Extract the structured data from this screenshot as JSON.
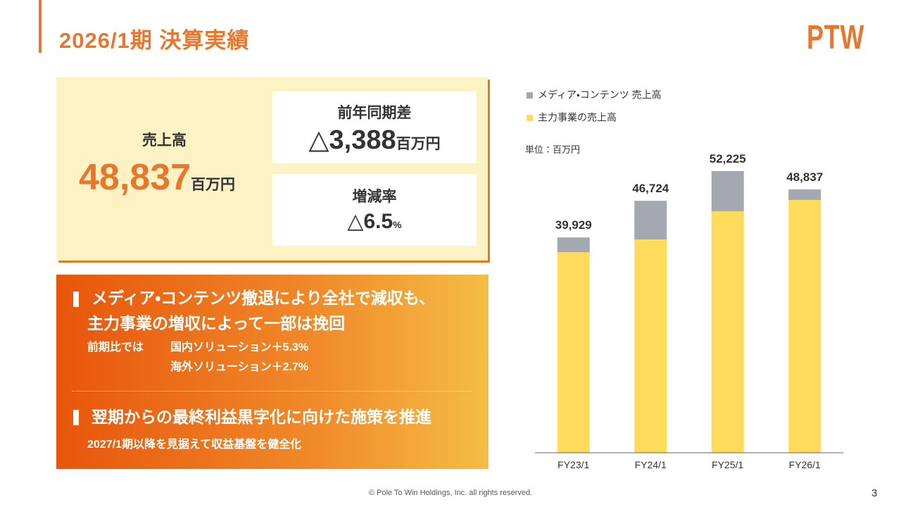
{
  "header": {
    "title": "2026/1期 決算実績",
    "logo": "PTW"
  },
  "summary": {
    "sales_label": "売上高",
    "sales_value": "48,837",
    "sales_unit": "百万円",
    "diff_label": "前年同期差",
    "diff_value": "△3,388",
    "diff_unit": "百万円",
    "rate_label": "増減率",
    "rate_value": "△6.5",
    "rate_unit": "%"
  },
  "points": [
    {
      "heading_lines": [
        "メディア・コンテンツ撤退により全社で減収も、",
        "主力事業の増収によって一部は挽回"
      ],
      "detail_label": "前期比では",
      "details": [
        "国内ソリューション＋5.3%",
        "海外ソリューション＋2.7%"
      ]
    },
    {
      "heading_lines": [
        "翌期からの最終利益黒字化に向けた施策を推進"
      ],
      "details": [
        "2027/1期以降を見据えて収益基盤を健全化"
      ]
    }
  ],
  "footer": {
    "copyright": "© Pole To Win Holdings, Inc. all rights reserved.",
    "page": "3"
  },
  "chart_data": {
    "type": "stacked_bar",
    "unit_label": "単位：百万円",
    "categories": [
      "FY23/1",
      "FY24/1",
      "FY25/1",
      "FY26/1"
    ],
    "series": [
      {
        "name": "メディア・コンテンツ 売上高",
        "color": "#a4a9b1",
        "values": [
          2740,
          7176,
          7437,
          1957
        ]
      },
      {
        "name": "主力事業の売上高",
        "color": "#ffdb5c",
        "values": [
          37189,
          39548,
          44788,
          46880
        ]
      }
    ],
    "totals": [
      39929,
      46724,
      52225,
      48837
    ],
    "total_labels": [
      "39,929",
      "46,724",
      "52,225",
      "48,837"
    ]
  }
}
